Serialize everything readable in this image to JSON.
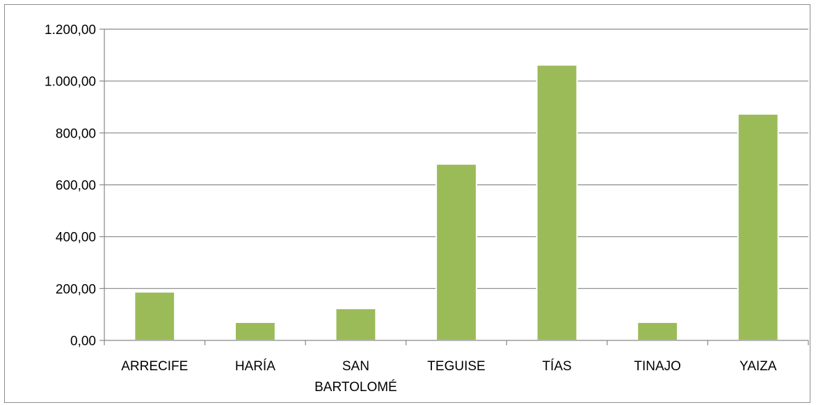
{
  "chart_data": {
    "type": "bar",
    "title": "",
    "xlabel": "",
    "ylabel": "",
    "categories": [
      [
        "ARRECIFE"
      ],
      [
        "HARÍA"
      ],
      [
        "SAN",
        "BARTOLOMÉ"
      ],
      [
        "TEGUISE"
      ],
      [
        "TÍAS"
      ],
      [
        "TINAJO"
      ],
      [
        "YAIZA"
      ]
    ],
    "values": [
      187,
      70,
      123,
      680,
      1062,
      70,
      873
    ],
    "ylim": [
      0,
      1200
    ],
    "yticks": [
      0,
      200,
      400,
      600,
      800,
      1000,
      1200
    ],
    "ytick_labels": [
      "0,00",
      "200,00",
      "400,00",
      "600,00",
      "800,00",
      "1.000,00",
      "1.200,00"
    ],
    "grid": true,
    "legend": "none",
    "colors": {
      "bar": "#9bbb59",
      "gridline": "#868686",
      "axis": "#868686",
      "frame": "#8c8c8c"
    }
  }
}
